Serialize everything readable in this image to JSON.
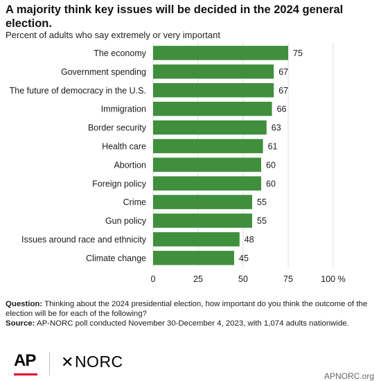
{
  "title": "A majority think key issues will be decided in the 2024 general election.",
  "subtitle": "Percent of adults who say extremely or very important",
  "colors": {
    "bar": "#3f8f3d",
    "grid": "#dcdcdc",
    "text": "#1a1a1a",
    "accent_red": "#e4002b"
  },
  "chart_data": {
    "type": "bar",
    "orientation": "horizontal",
    "categories": [
      "The economy",
      "Government spending",
      "The future of democracy in the U.S.",
      "Immigration",
      "Border security",
      "Health care",
      "Abortion",
      "Foreign policy",
      "Crime",
      "Gun policy",
      "Issues around race and ethnicity",
      "Climate change"
    ],
    "values": [
      75,
      67,
      67,
      66,
      63,
      61,
      60,
      60,
      55,
      55,
      48,
      45
    ],
    "xlim": [
      0,
      100
    ],
    "x_ticks": [
      0,
      25,
      50,
      75,
      100
    ],
    "x_tick_labels": [
      "0",
      "25",
      "50",
      "75",
      "100 %"
    ],
    "grid": true
  },
  "footnote": {
    "question_label": "Question:",
    "question_text": "Thinking about the 2024 presidential election, how important do you think the outcome of the election will be for each of the following?",
    "source_label": "Source:",
    "source_text": "AP-NORC poll conducted November 30-December 4, 2023, with 1,074 adults nationwide."
  },
  "logos": {
    "ap": "AP",
    "norc": "NORC",
    "norc_symbol": "✕"
  },
  "site_url": "APNORC.org"
}
